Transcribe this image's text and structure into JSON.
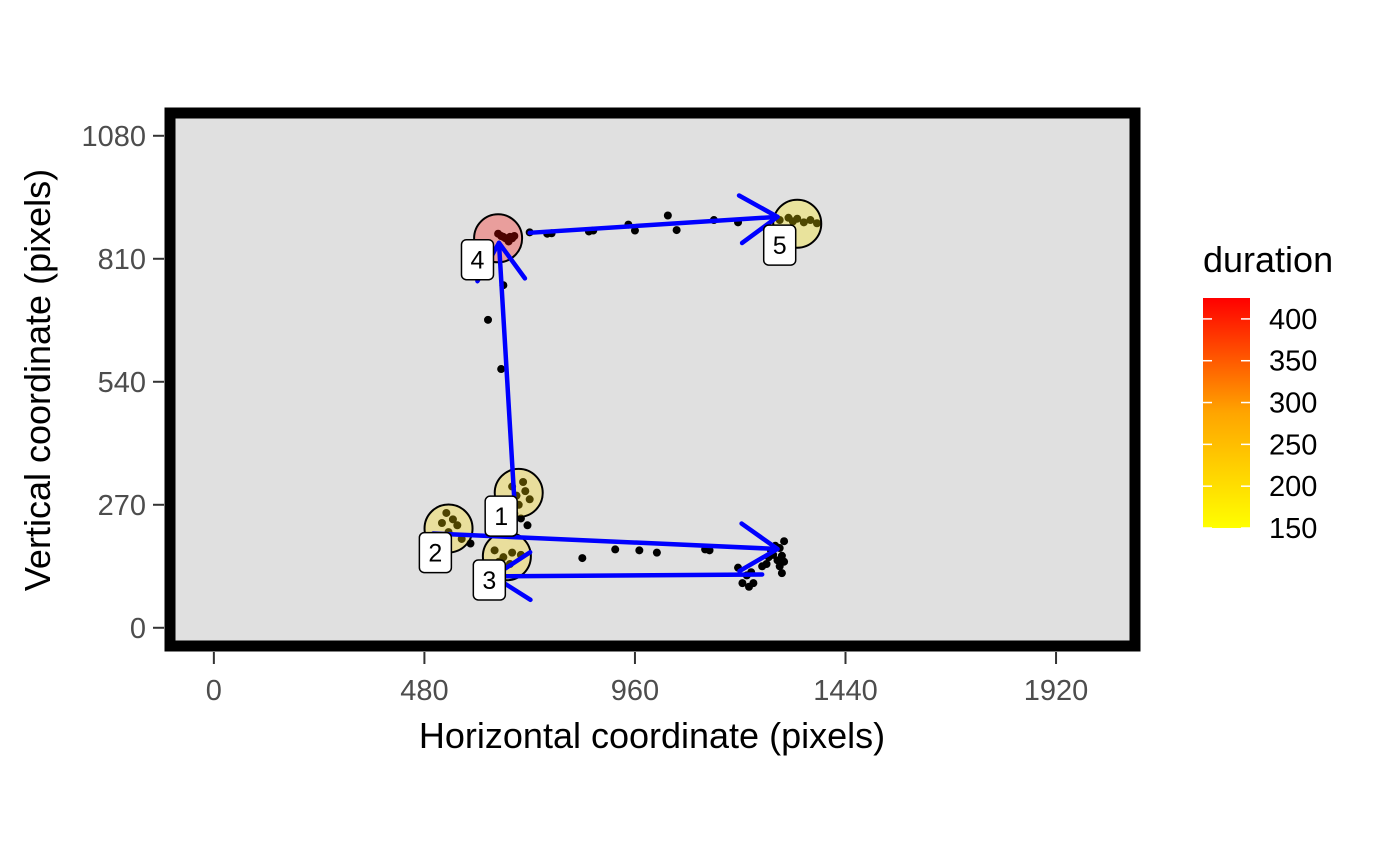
{
  "chart_data": {
    "type": "scatter",
    "title": "",
    "xlabel": "Horizontal coordinate (pixels)",
    "ylabel": "Vertical coordinate (pixels)",
    "xlim": [
      -100,
      2100
    ],
    "ylim": [
      -40,
      1130
    ],
    "x_ticks": [
      0,
      480,
      960,
      1440,
      1920
    ],
    "y_ticks": [
      0,
      270,
      540,
      810,
      1080
    ],
    "x_tick_labels": [
      "0",
      "480",
      "960",
      "1440",
      "1920"
    ],
    "y_tick_labels": [
      "0",
      "270",
      "540",
      "810",
      "1080"
    ],
    "grid": false,
    "panel_background": "#e0e0e0",
    "raw_points": [
      [
        680,
        310
      ],
      [
        710,
        300
      ],
      [
        690,
        290
      ],
      [
        705,
        320
      ],
      [
        695,
        270
      ],
      [
        720,
        282
      ],
      [
        685,
        250
      ],
      [
        700,
        240
      ],
      [
        715,
        225
      ],
      [
        530,
        252
      ],
      [
        545,
        238
      ],
      [
        520,
        230
      ],
      [
        555,
        225
      ],
      [
        535,
        210
      ],
      [
        565,
        195
      ],
      [
        585,
        185
      ],
      [
        640,
        170
      ],
      [
        660,
        155
      ],
      [
        680,
        165
      ],
      [
        650,
        145
      ],
      [
        700,
        160
      ],
      [
        675,
        140
      ],
      [
        840,
        153
      ],
      [
        915,
        172
      ],
      [
        970,
        170
      ],
      [
        1010,
        165
      ],
      [
        1120,
        172
      ],
      [
        1130,
        170
      ],
      [
        1195,
        132
      ],
      [
        1205,
        98
      ],
      [
        1220,
        90
      ],
      [
        1230,
        98
      ],
      [
        1215,
        115
      ],
      [
        1225,
        122
      ],
      [
        1250,
        135
      ],
      [
        1260,
        140
      ],
      [
        1265,
        155
      ],
      [
        1270,
        170
      ],
      [
        1280,
        180
      ],
      [
        1290,
        175
      ],
      [
        1300,
        190
      ],
      [
        1285,
        148
      ],
      [
        1275,
        160
      ],
      [
        1295,
        158
      ],
      [
        1290,
        135
      ],
      [
        1295,
        120
      ],
      [
        1300,
        145
      ],
      [
        648,
        865
      ],
      [
        655,
        860
      ],
      [
        660,
        858
      ],
      [
        665,
        855
      ],
      [
        670,
        852
      ],
      [
        675,
        858
      ],
      [
        680,
        855
      ],
      [
        685,
        860
      ],
      [
        672,
        848
      ],
      [
        660,
        752
      ],
      [
        625,
        676
      ],
      [
        655,
        568
      ],
      [
        720,
        868
      ],
      [
        760,
        865
      ],
      [
        770,
        866
      ],
      [
        855,
        870
      ],
      [
        865,
        872
      ],
      [
        945,
        885
      ],
      [
        960,
        872
      ],
      [
        1035,
        905
      ],
      [
        1055,
        873
      ],
      [
        1140,
        895
      ],
      [
        1195,
        890
      ],
      [
        1290,
        895
      ],
      [
        1310,
        900
      ],
      [
        1320,
        892
      ],
      [
        1330,
        898
      ],
      [
        1345,
        890
      ],
      [
        1360,
        895
      ],
      [
        1375,
        888
      ]
    ],
    "fixations": [
      {
        "id": "1",
        "x": 695,
        "y": 296,
        "duration": 190
      },
      {
        "id": "2",
        "x": 535,
        "y": 218,
        "duration": 185
      },
      {
        "id": "3",
        "x": 668,
        "y": 157,
        "duration": 190
      },
      {
        "id": "4",
        "x": 648,
        "y": 855,
        "duration": 420
      },
      {
        "id": "5",
        "x": 1330,
        "y": 887,
        "duration": 170
      }
    ],
    "saccades": [
      {
        "x0": 688,
        "y0": 233,
        "x1": 650,
        "y1": 845
      },
      {
        "x0": 500,
        "y0": 207,
        "x1": 1285,
        "y1": 173
      },
      {
        "x0": 1250,
        "y0": 117,
        "x1": 637,
        "y1": 113
      },
      {
        "x0": 720,
        "y0": 867,
        "x1": 1285,
        "y1": 902
      }
    ],
    "label_positions": [
      {
        "id": "1",
        "x": 655,
        "y": 245
      },
      {
        "id": "2",
        "x": 505,
        "y": 165
      },
      {
        "id": "3",
        "x": 628,
        "y": 105
      },
      {
        "id": "4",
        "x": 601,
        "y": 808
      },
      {
        "id": "5",
        "x": 1290,
        "y": 840
      }
    ],
    "colors": {
      "raw_point": "#000000",
      "saccade": "#0000ff",
      "panel_border": "#000000",
      "fixation_outline": "#000000",
      "label_fill": "#ffffff"
    },
    "legend": {
      "title": "duration",
      "position": "right",
      "min": 150,
      "max": 425,
      "ticks": [
        150,
        200,
        250,
        300,
        350,
        400
      ],
      "tick_labels": [
        "150",
        "200",
        "250",
        "300",
        "350",
        "400"
      ],
      "gradient_low": "#ffff00",
      "gradient_high": "#ff0000"
    }
  }
}
